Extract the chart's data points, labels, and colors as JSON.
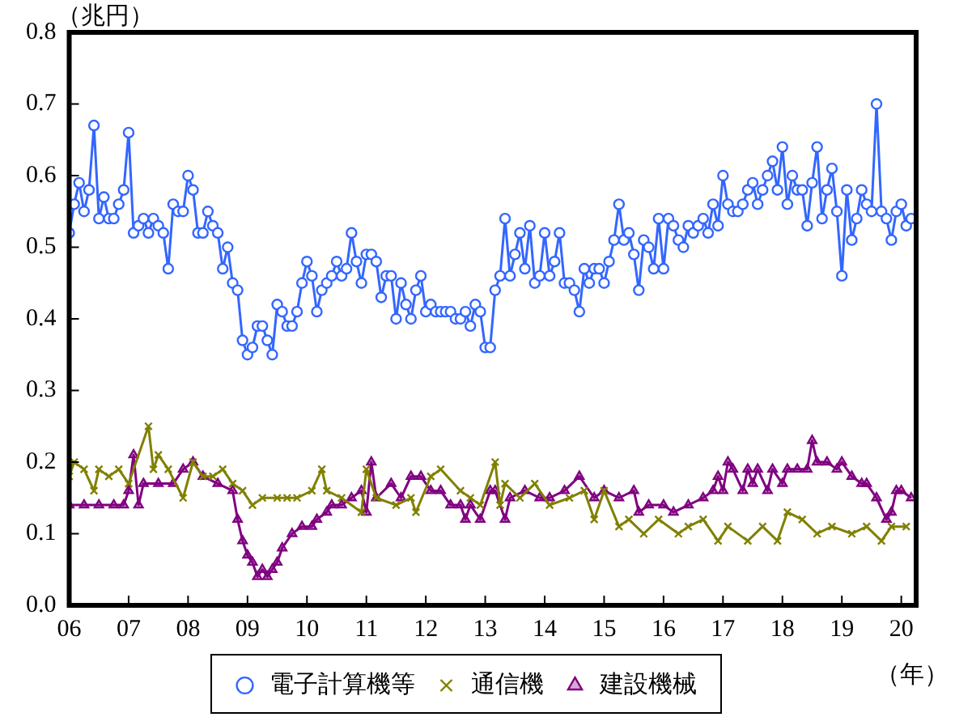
{
  "chart_data": {
    "type": "line",
    "ylabel": "（兆円）",
    "xlabel": "（年）",
    "legend": "bottom",
    "xlim": [
      "2006-01",
      "2020-04"
    ],
    "ylim": [
      0,
      0.8
    ],
    "xticks": [
      {
        "value": "2006-01",
        "label": "06"
      },
      {
        "value": "2007-01",
        "label": "07"
      },
      {
        "value": "2008-01",
        "label": "08"
      },
      {
        "value": "2009-01",
        "label": "09"
      },
      {
        "value": "2010-01",
        "label": "10"
      },
      {
        "value": "2011-01",
        "label": "11"
      },
      {
        "value": "2012-01",
        "label": "12"
      },
      {
        "value": "2013-01",
        "label": "13"
      },
      {
        "value": "2014-01",
        "label": "14"
      },
      {
        "value": "2015-01",
        "label": "15"
      },
      {
        "value": "2016-01",
        "label": "16"
      },
      {
        "value": "2017-01",
        "label": "17"
      },
      {
        "value": "2018-01",
        "label": "18"
      },
      {
        "value": "2019-01",
        "label": "19"
      },
      {
        "value": "2020-01",
        "label": "20"
      }
    ],
    "yticks": [
      {
        "value": 0,
        "label": "0.0"
      },
      0.1,
      0.2,
      0.3,
      0.4,
      0.5,
      0.6,
      0.7,
      0.8
    ],
    "x": [
      "2006-01",
      "2006-02",
      "2006-03",
      "2006-04",
      "2006-05",
      "2006-06",
      "2006-07",
      "2006-08",
      "2006-09",
      "2006-10",
      "2006-11",
      "2006-12",
      "2007-01",
      "2007-02",
      "2007-03",
      "2007-04",
      "2007-05",
      "2007-06",
      "2007-07",
      "2007-08",
      "2007-09",
      "2007-10",
      "2007-11",
      "2007-12",
      "2008-01",
      "2008-02",
      "2008-03",
      "2008-04",
      "2008-05",
      "2008-06",
      "2008-07",
      "2008-08",
      "2008-09",
      "2008-10",
      "2008-11",
      "2008-12",
      "2009-01",
      "2009-02",
      "2009-03",
      "2009-04",
      "2009-05",
      "2009-06",
      "2009-07",
      "2009-08",
      "2009-09",
      "2009-10",
      "2009-11",
      "2009-12",
      "2010-01",
      "2010-02",
      "2010-03",
      "2010-04",
      "2010-05",
      "2010-06",
      "2010-07",
      "2010-08",
      "2010-09",
      "2010-10",
      "2010-11",
      "2010-12",
      "2011-01",
      "2011-02",
      "2011-03",
      "2011-04",
      "2011-05",
      "2011-06",
      "2011-07",
      "2011-08",
      "2011-09",
      "2011-10",
      "2011-11",
      "2011-12",
      "2012-01",
      "2012-02",
      "2012-03",
      "2012-04",
      "2012-05",
      "2012-06",
      "2012-07",
      "2012-08",
      "2012-09",
      "2012-10",
      "2012-11",
      "2012-12",
      "2013-01",
      "2013-02",
      "2013-03",
      "2013-04",
      "2013-05",
      "2013-06",
      "2013-07",
      "2013-08",
      "2013-09",
      "2013-10",
      "2013-11",
      "2013-12",
      "2014-01",
      "2014-02",
      "2014-03",
      "2014-04",
      "2014-05",
      "2014-06",
      "2014-07",
      "2014-08",
      "2014-09",
      "2014-10",
      "2014-11",
      "2014-12",
      "2015-01",
      "2015-02",
      "2015-03",
      "2015-04",
      "2015-05",
      "2015-06",
      "2015-07",
      "2015-08",
      "2015-09",
      "2015-10",
      "2015-11",
      "2015-12",
      "2016-01",
      "2016-02",
      "2016-03",
      "2016-04",
      "2016-05",
      "2016-06",
      "2016-07",
      "2016-08",
      "2016-09",
      "2016-10",
      "2016-11",
      "2016-12",
      "2017-01",
      "2017-02",
      "2017-03",
      "2017-04",
      "2017-05",
      "2017-06",
      "2017-07",
      "2017-08",
      "2017-09",
      "2017-10",
      "2017-11",
      "2017-12",
      "2018-01",
      "2018-02",
      "2018-03",
      "2018-04",
      "2018-05",
      "2018-06",
      "2018-07",
      "2018-08",
      "2018-09",
      "2018-10",
      "2018-11",
      "2018-12",
      "2019-01",
      "2019-02",
      "2019-03",
      "2019-04",
      "2019-05",
      "2019-06",
      "2019-07",
      "2019-08",
      "2019-09",
      "2019-10",
      "2019-11",
      "2019-12",
      "2020-01",
      "2020-02",
      "2020-03"
    ],
    "series": [
      {
        "name": "電子計算機等",
        "color": "#3366ff",
        "marker": "circle",
        "values": [
          0.52,
          0.56,
          0.59,
          0.55,
          0.58,
          0.67,
          0.54,
          0.57,
          0.54,
          0.54,
          0.56,
          0.58,
          0.66,
          0.52,
          0.53,
          0.54,
          0.52,
          0.54,
          0.53,
          0.52,
          0.47,
          0.56,
          0.55,
          0.55,
          0.6,
          0.58,
          0.52,
          0.52,
          0.55,
          0.53,
          0.52,
          0.47,
          0.5,
          0.45,
          0.44,
          0.37,
          0.35,
          0.36,
          0.39,
          0.39,
          0.37,
          0.35,
          0.42,
          0.41,
          0.39,
          0.39,
          0.41,
          0.45,
          0.48,
          0.46,
          0.41,
          0.44,
          0.45,
          0.46,
          0.48,
          0.46,
          0.47,
          0.52,
          0.48,
          0.45,
          0.49,
          0.49,
          0.48,
          0.43,
          0.46,
          0.46,
          0.4,
          0.45,
          0.42,
          0.4,
          0.44,
          0.46,
          0.41,
          0.42,
          0.41,
          0.41,
          0.41,
          0.41,
          0.4,
          0.4,
          0.41,
          0.39,
          0.42,
          0.41,
          0.36,
          0.36,
          0.44,
          0.46,
          0.54,
          0.46,
          0.49,
          0.52,
          0.47,
          0.53,
          0.45,
          0.46,
          0.52,
          0.46,
          0.48,
          0.52,
          0.45,
          0.45,
          0.44,
          0.41,
          0.47,
          0.45,
          0.47,
          0.47,
          0.45,
          0.48,
          0.51,
          0.56,
          0.51,
          0.52,
          0.49,
          0.44,
          0.51,
          0.5,
          0.47,
          0.54,
          0.47,
          0.54,
          0.53,
          0.51,
          0.5,
          0.53,
          0.52,
          0.53,
          0.54,
          0.52,
          0.56,
          0.53,
          0.6,
          0.56,
          0.55,
          0.55,
          0.56,
          0.58,
          0.59,
          0.56,
          0.58,
          0.6,
          0.62,
          0.58,
          0.64,
          0.56,
          0.6,
          0.58,
          0.58,
          0.53,
          0.59,
          0.64,
          0.54,
          0.58,
          0.61,
          0.55,
          0.46,
          0.58,
          0.51,
          0.54,
          0.58,
          0.56,
          0.55,
          0.7,
          0.55,
          0.54,
          0.51,
          0.55,
          0.56,
          0.53,
          0.54
        ]
      },
      {
        "name": "通信機",
        "color": "#808000",
        "marker": "cross",
        "x": [
          "2006-01",
          "2006-02",
          "2006-04",
          "2006-06",
          "2006-07",
          "2006-09",
          "2006-11",
          "2007-01",
          "2007-05",
          "2007-06",
          "2007-07",
          "2007-09",
          "2007-12",
          "2008-02",
          "2008-04",
          "2008-06",
          "2008-08",
          "2008-10",
          "2008-12",
          "2009-02",
          "2009-04",
          "2009-07",
          "2009-09",
          "2009-11",
          "2010-02",
          "2010-04",
          "2010-05",
          "2010-08",
          "2010-12",
          "2011-01",
          "2011-03",
          "2011-07",
          "2011-10",
          "2011-11",
          "2012-02",
          "2012-04",
          "2012-08",
          "2012-10",
          "2012-12",
          "2013-03",
          "2013-04",
          "2013-05",
          "2013-08",
          "2013-11",
          "2014-02",
          "2014-06",
          "2014-09",
          "2014-11",
          "2015-01",
          "2015-04",
          "2015-06",
          "2015-09",
          "2015-12",
          "2016-04",
          "2016-06",
          "2016-09",
          "2016-12",
          "2017-02",
          "2017-06",
          "2017-09",
          "2017-12",
          "2018-02",
          "2018-05",
          "2018-08",
          "2018-11",
          "2019-03",
          "2019-06",
          "2019-09",
          "2019-11",
          "2020-02"
        ],
        "values": [
          0.18,
          0.2,
          0.19,
          0.16,
          0.19,
          0.18,
          0.19,
          0.17,
          0.25,
          0.19,
          0.21,
          0.19,
          0.15,
          0.2,
          0.18,
          0.18,
          0.19,
          0.17,
          0.16,
          0.14,
          0.15,
          0.15,
          0.15,
          0.15,
          0.16,
          0.19,
          0.16,
          0.15,
          0.13,
          0.19,
          0.15,
          0.14,
          0.15,
          0.13,
          0.18,
          0.19,
          0.16,
          0.15,
          0.14,
          0.2,
          0.14,
          0.17,
          0.15,
          0.17,
          0.14,
          0.15,
          0.16,
          0.12,
          0.16,
          0.11,
          0.12,
          0.1,
          0.12,
          0.1,
          0.11,
          0.12,
          0.09,
          0.11,
          0.09,
          0.11,
          0.09,
          0.13,
          0.12,
          0.1,
          0.11,
          0.1,
          0.11,
          0.09,
          0.11,
          0.11
        ]
      },
      {
        "name": "建設機械",
        "color": "#800080",
        "marker": "triangle",
        "x": [
          "2006-01",
          "2006-04",
          "2006-07",
          "2006-10",
          "2006-12",
          "2007-01",
          "2007-02",
          "2007-03",
          "2007-04",
          "2007-07",
          "2007-10",
          "2007-12",
          "2008-02",
          "2008-04",
          "2008-07",
          "2008-10",
          "2008-11",
          "2008-12",
          "2009-01",
          "2009-02",
          "2009-03",
          "2009-04",
          "2009-05",
          "2009-06",
          "2009-07",
          "2009-08",
          "2009-10",
          "2009-12",
          "2010-02",
          "2010-03",
          "2010-05",
          "2010-06",
          "2010-08",
          "2010-10",
          "2010-12",
          "2011-01",
          "2011-02",
          "2011-03",
          "2011-06",
          "2011-08",
          "2011-10",
          "2011-12",
          "2012-02",
          "2012-04",
          "2012-06",
          "2012-08",
          "2012-09",
          "2012-10",
          "2012-12",
          "2013-02",
          "2013-03",
          "2013-05",
          "2013-06",
          "2013-09",
          "2013-12",
          "2014-02",
          "2014-05",
          "2014-08",
          "2014-11",
          "2015-01",
          "2015-04",
          "2015-07",
          "2015-08",
          "2015-10",
          "2016-01",
          "2016-03",
          "2016-06",
          "2016-09",
          "2016-11",
          "2016-12",
          "2017-01",
          "2017-02",
          "2017-03",
          "2017-05",
          "2017-06",
          "2017-07",
          "2017-08",
          "2017-10",
          "2017-11",
          "2018-01",
          "2018-02",
          "2018-04",
          "2018-06",
          "2018-07",
          "2018-08",
          "2018-10",
          "2018-12",
          "2019-01",
          "2019-03",
          "2019-05",
          "2019-06",
          "2019-08",
          "2019-10",
          "2019-11",
          "2019-12",
          "2020-01",
          "2020-03"
        ],
        "values": [
          0.14,
          0.14,
          0.14,
          0.14,
          0.14,
          0.16,
          0.21,
          0.14,
          0.17,
          0.17,
          0.17,
          0.19,
          0.2,
          0.18,
          0.17,
          0.16,
          0.12,
          0.09,
          0.07,
          0.06,
          0.04,
          0.05,
          0.04,
          0.05,
          0.06,
          0.08,
          0.1,
          0.11,
          0.11,
          0.12,
          0.13,
          0.14,
          0.14,
          0.15,
          0.16,
          0.13,
          0.2,
          0.15,
          0.17,
          0.15,
          0.18,
          0.18,
          0.16,
          0.16,
          0.14,
          0.14,
          0.12,
          0.14,
          0.12,
          0.16,
          0.16,
          0.12,
          0.15,
          0.16,
          0.15,
          0.15,
          0.16,
          0.18,
          0.15,
          0.16,
          0.15,
          0.16,
          0.13,
          0.14,
          0.14,
          0.13,
          0.14,
          0.15,
          0.16,
          0.18,
          0.16,
          0.2,
          0.19,
          0.16,
          0.19,
          0.17,
          0.19,
          0.16,
          0.19,
          0.17,
          0.19,
          0.19,
          0.19,
          0.23,
          0.2,
          0.2,
          0.19,
          0.2,
          0.18,
          0.17,
          0.17,
          0.15,
          0.12,
          0.13,
          0.16,
          0.16,
          0.15
        ]
      }
    ]
  }
}
